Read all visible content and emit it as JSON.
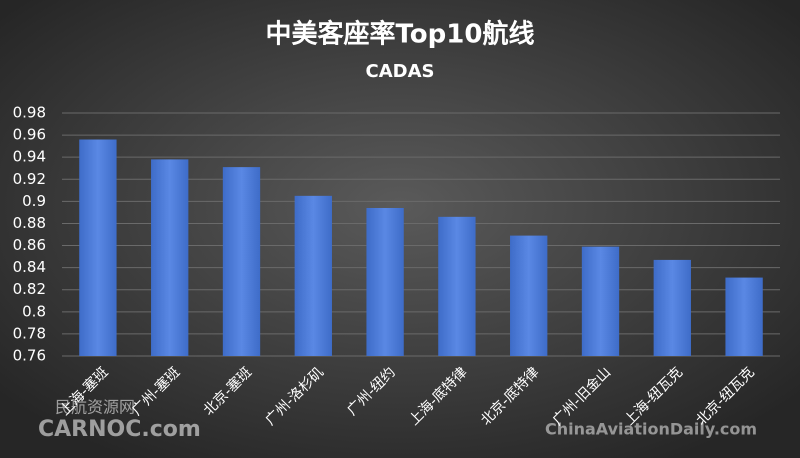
{
  "chart_data": {
    "type": "bar",
    "title": "中美客座率Top10航线",
    "subtitle": "CADAS",
    "categories": [
      "上海-塞班",
      "广州-塞班",
      "北京-塞班",
      "广州-洛杉矶",
      "广州-纽约",
      "上海-底特律",
      "北京-底特律",
      "广州-旧金山",
      "上海-纽瓦克",
      "北京-纽瓦克"
    ],
    "values": [
      0.956,
      0.938,
      0.931,
      0.905,
      0.894,
      0.886,
      0.869,
      0.859,
      0.847,
      0.831
    ],
    "color": "#4a78d6",
    "ylim": [
      0.76,
      0.98
    ],
    "yticks": [
      0.76,
      0.78,
      0.8,
      0.82,
      0.84,
      0.86,
      0.88,
      0.9,
      0.92,
      0.94,
      0.96,
      0.98
    ],
    "grid": true
  },
  "watermarks": [
    "民航资源网",
    "CARNOC.com",
    "ChinaAviationDaily.com"
  ]
}
